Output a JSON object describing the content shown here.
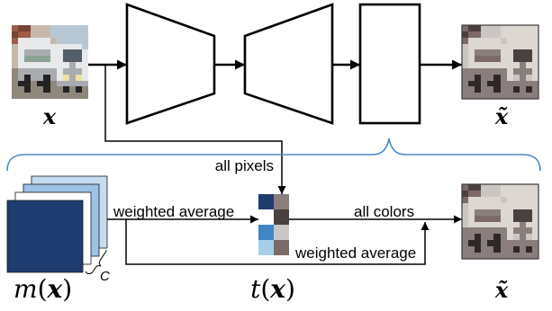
{
  "labels": {
    "input_image": "x",
    "output_image_top": "x̃",
    "output_image_bottom": "x̃",
    "all_pixels": "all pixels",
    "weighted_average_to_palette": "weighted average",
    "all_colors": "all colors",
    "weighted_average_to_output": "weighted average",
    "channels": "C"
  },
  "mask_label": {
    "fn": "m",
    "open": "(",
    "arg": "x",
    "close": ")"
  },
  "palette_label": {
    "fn": "t",
    "open": "(",
    "arg": "x",
    "close": ")"
  },
  "mask_stack_colors": [
    "#c5dbf0",
    "#9cc2e5",
    "#ffffff",
    "#1f3c70"
  ],
  "palette": {
    "mask_colors": [
      "#1f3c70",
      "#ffffff",
      "#3f86c6",
      "#a6cfea"
    ],
    "colors": [
      "#8a7e7d",
      "#4a4040",
      "#cbc6c4",
      "#7d6a66"
    ]
  },
  "colors": {
    "brace": "#4a8ac4"
  }
}
